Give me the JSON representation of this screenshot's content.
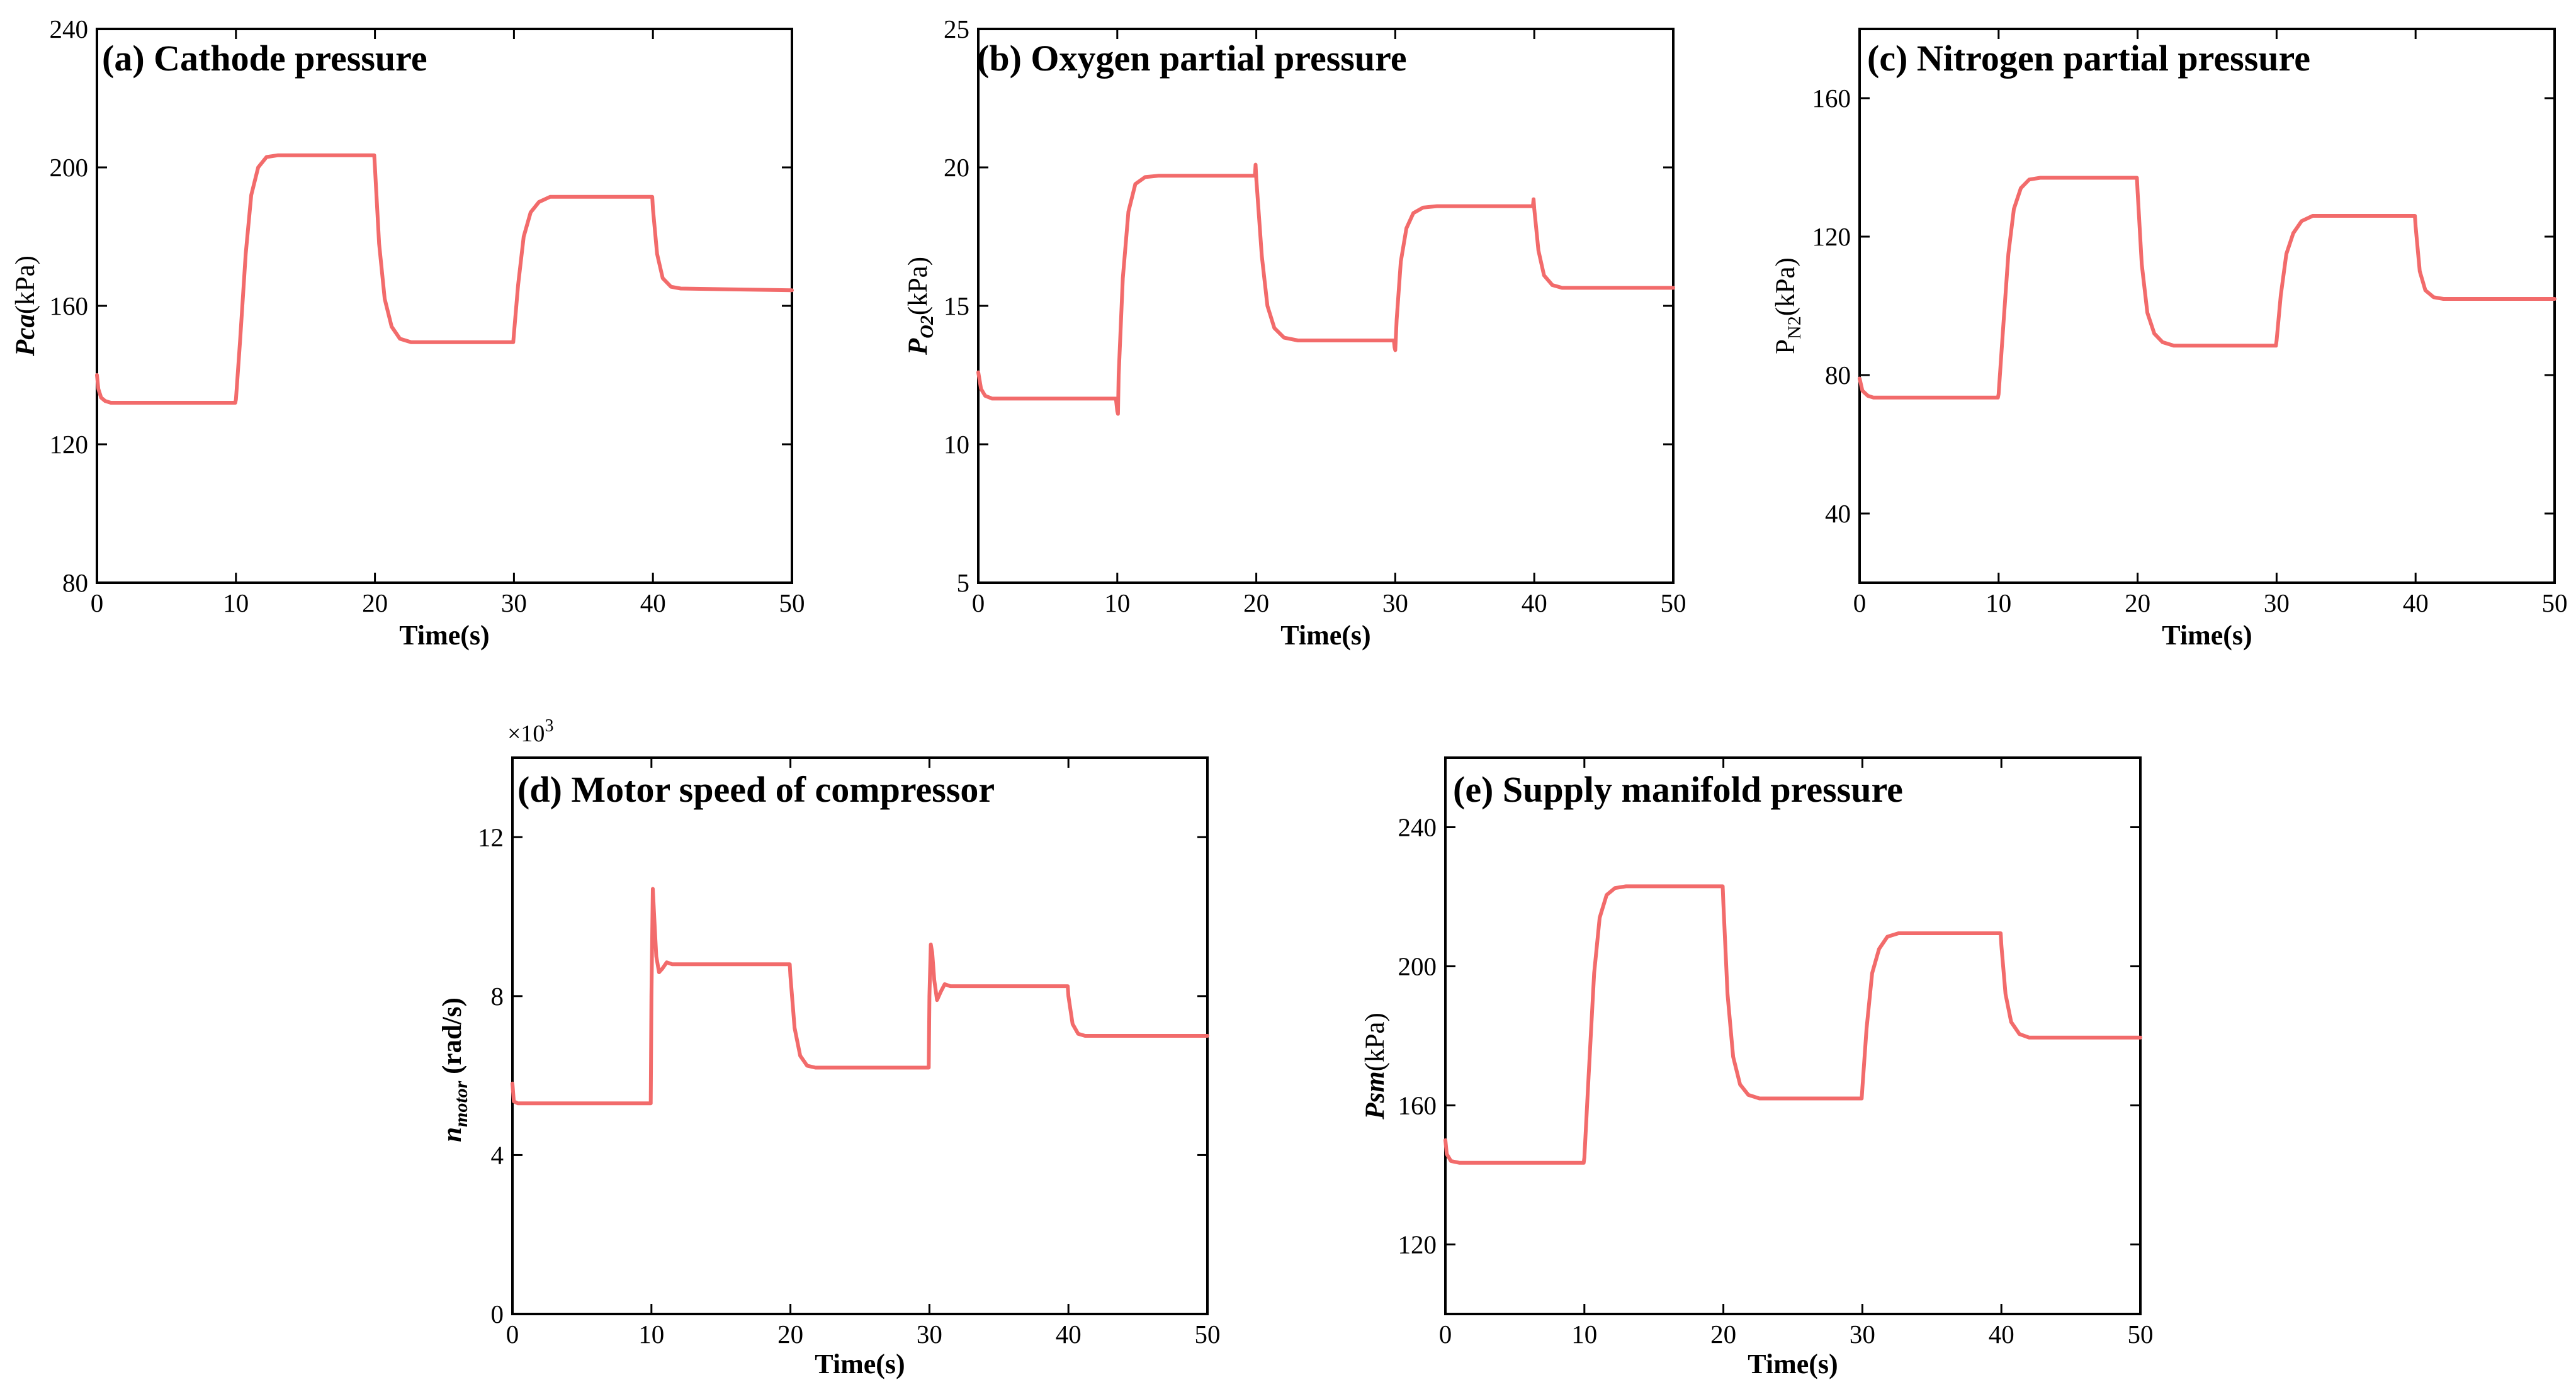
{
  "chart_data": [
    {
      "type": "line",
      "title": "(a) Cathode pressure",
      "xlabel": "Time(s)",
      "ylabel": {
        "main": "Pca",
        "unit": "(kPa)"
      },
      "x_ticks": [
        "0",
        "10",
        "20",
        "30",
        "40",
        "50"
      ],
      "y_ticks": [
        "80",
        "120",
        "160",
        "200",
        "240"
      ],
      "xlim": [
        0,
        50
      ],
      "ylim": [
        80,
        240
      ],
      "line_color": "#F26B6B",
      "series": [
        {
          "name": "Pca",
          "points": [
            [
              0,
              140
            ],
            [
              0.1,
              136
            ],
            [
              0.3,
              133.5
            ],
            [
              0.6,
              132.5
            ],
            [
              1,
              132
            ],
            [
              9.95,
              132
            ],
            [
              10,
              133
            ],
            [
              10.3,
              150
            ],
            [
              10.7,
              175
            ],
            [
              11.1,
              192
            ],
            [
              11.6,
              200
            ],
            [
              12.2,
              203
            ],
            [
              13,
              203.5
            ],
            [
              19.95,
              203.5
            ],
            [
              20,
              200
            ],
            [
              20.3,
              178
            ],
            [
              20.7,
              162
            ],
            [
              21.2,
              154
            ],
            [
              21.8,
              150.5
            ],
            [
              22.6,
              149.5
            ],
            [
              29.95,
              149.5
            ],
            [
              30,
              152
            ],
            [
              30.3,
              166
            ],
            [
              30.7,
              180
            ],
            [
              31.2,
              187
            ],
            [
              31.8,
              190
            ],
            [
              32.6,
              191.5
            ],
            [
              39.95,
              191.5
            ],
            [
              40,
              188
            ],
            [
              40.3,
              175
            ],
            [
              40.7,
              168
            ],
            [
              41.3,
              165.5
            ],
            [
              42,
              165
            ],
            [
              50,
              164.5
            ]
          ]
        }
      ]
    },
    {
      "type": "line",
      "title": "(b) Oxygen partial pressure",
      "xlabel": "Time(s)",
      "ylabel": {
        "main": "P",
        "sub": "O2",
        "unit": "(kPa)"
      },
      "x_ticks": [
        "0",
        "10",
        "20",
        "30",
        "40",
        "50"
      ],
      "y_ticks": [
        "5",
        "10",
        "15",
        "20",
        "25"
      ],
      "xlim": [
        0,
        50
      ],
      "ylim": [
        5,
        25
      ],
      "line_color": "#F26B6B",
      "series": [
        {
          "name": "PO2",
          "points": [
            [
              0,
              12.6
            ],
            [
              0.2,
              12
            ],
            [
              0.5,
              11.75
            ],
            [
              1,
              11.65
            ],
            [
              9.9,
              11.65
            ],
            [
              10,
              11.2
            ],
            [
              10.05,
              11.1
            ],
            [
              10.1,
              12.5
            ],
            [
              10.4,
              16
            ],
            [
              10.8,
              18.4
            ],
            [
              11.3,
              19.4
            ],
            [
              12,
              19.65
            ],
            [
              13,
              19.7
            ],
            [
              19.9,
              19.7
            ],
            [
              19.95,
              20.1
            ],
            [
              20,
              19.6
            ],
            [
              20.4,
              16.8
            ],
            [
              20.8,
              15
            ],
            [
              21.3,
              14.2
            ],
            [
              22,
              13.85
            ],
            [
              23,
              13.75
            ],
            [
              29.9,
              13.75
            ],
            [
              29.95,
              13.5
            ],
            [
              30,
              13.4
            ],
            [
              30.1,
              14.5
            ],
            [
              30.4,
              16.6
            ],
            [
              30.8,
              17.8
            ],
            [
              31.3,
              18.35
            ],
            [
              32,
              18.55
            ],
            [
              33,
              18.6
            ],
            [
              39.9,
              18.6
            ],
            [
              39.95,
              18.85
            ],
            [
              40,
              18.5
            ],
            [
              40.3,
              17
            ],
            [
              40.7,
              16.1
            ],
            [
              41.3,
              15.75
            ],
            [
              42,
              15.65
            ],
            [
              50,
              15.65
            ]
          ]
        }
      ]
    },
    {
      "type": "line",
      "title": "(c) Nitrogen partial pressure",
      "xlabel": "Time(s)",
      "ylabel": {
        "main": "P",
        "sub": "N2",
        "unit": "(kPa)"
      },
      "x_ticks": [
        "0",
        "10",
        "20",
        "30",
        "40",
        "50"
      ],
      "y_ticks": [
        "40",
        "80",
        "120",
        "160"
      ],
      "xlim": [
        0,
        50
      ],
      "ylim": [
        20,
        180
      ],
      "line_color": "#F26B6B",
      "series": [
        {
          "name": "PN2",
          "points": [
            [
              0,
              79
            ],
            [
              0.2,
              75.5
            ],
            [
              0.6,
              74
            ],
            [
              1,
              73.5
            ],
            [
              9.95,
              73.5
            ],
            [
              10,
              74.5
            ],
            [
              10.3,
              92
            ],
            [
              10.7,
              115
            ],
            [
              11.1,
              128
            ],
            [
              11.6,
              134
            ],
            [
              12.2,
              136.5
            ],
            [
              13,
              137
            ],
            [
              19.95,
              137
            ],
            [
              20,
              133
            ],
            [
              20.3,
              112
            ],
            [
              20.7,
              98
            ],
            [
              21.2,
              92
            ],
            [
              21.8,
              89.5
            ],
            [
              22.6,
              88.5
            ],
            [
              29.95,
              88.5
            ],
            [
              30,
              90
            ],
            [
              30.3,
              103
            ],
            [
              30.7,
              115
            ],
            [
              31.2,
              121
            ],
            [
              31.8,
              124.5
            ],
            [
              32.6,
              126
            ],
            [
              39.95,
              126
            ],
            [
              40,
              123
            ],
            [
              40.3,
              110
            ],
            [
              40.7,
              104.5
            ],
            [
              41.3,
              102.5
            ],
            [
              42,
              102
            ],
            [
              50,
              102
            ]
          ]
        }
      ]
    },
    {
      "type": "line",
      "title": "(d) Motor speed of compressor",
      "xlabel": "Time(s)",
      "ylabel": {
        "main": "n",
        "sub": "motor",
        "unit": " (rad/s)"
      },
      "y_multiplier": {
        "base": "×10",
        "exponent": "3"
      },
      "x_ticks": [
        "0",
        "10",
        "20",
        "30",
        "40",
        "50"
      ],
      "y_ticks": [
        "0",
        "4",
        "8",
        "12"
      ],
      "xlim": [
        0,
        50
      ],
      "ylim": [
        0,
        14
      ],
      "line_color": "#F26B6B",
      "series": [
        {
          "name": "n_motor",
          "points": [
            [
              0,
              5.8
            ],
            [
              0.1,
              5.35
            ],
            [
              0.4,
              5.3
            ],
            [
              9.95,
              5.3
            ],
            [
              10,
              8
            ],
            [
              10.1,
              10.7
            ],
            [
              10.2,
              10
            ],
            [
              10.35,
              9
            ],
            [
              10.55,
              8.6
            ],
            [
              10.8,
              8.7
            ],
            [
              11.1,
              8.85
            ],
            [
              11.5,
              8.8
            ],
            [
              19.95,
              8.8
            ],
            [
              20,
              8.5
            ],
            [
              20.3,
              7.2
            ],
            [
              20.7,
              6.5
            ],
            [
              21.2,
              6.25
            ],
            [
              21.8,
              6.2
            ],
            [
              29.95,
              6.2
            ],
            [
              30,
              8
            ],
            [
              30.1,
              9.3
            ],
            [
              30.2,
              9.1
            ],
            [
              30.35,
              8.4
            ],
            [
              30.55,
              7.9
            ],
            [
              30.8,
              8.1
            ],
            [
              31.1,
              8.3
            ],
            [
              31.5,
              8.25
            ],
            [
              39.95,
              8.25
            ],
            [
              40,
              8
            ],
            [
              40.3,
              7.3
            ],
            [
              40.7,
              7.05
            ],
            [
              41.2,
              7
            ],
            [
              50,
              7
            ]
          ]
        }
      ]
    },
    {
      "type": "line",
      "title": "(e) Supply manifold pressure",
      "xlabel": "Time(s)",
      "ylabel": {
        "main": "Psm",
        "unit": "(kPa)"
      },
      "x_ticks": [
        "0",
        "10",
        "20",
        "30",
        "40",
        "50"
      ],
      "y_ticks": [
        "120",
        "160",
        "200",
        "240"
      ],
      "xlim": [
        0,
        50
      ],
      "ylim": [
        100,
        260
      ],
      "line_color": "#F26B6B",
      "series": [
        {
          "name": "Psm",
          "points": [
            [
              0,
              150
            ],
            [
              0.1,
              146
            ],
            [
              0.4,
              144
            ],
            [
              1,
              143.5
            ],
            [
              9.95,
              143.5
            ],
            [
              10,
              145
            ],
            [
              10.3,
              168
            ],
            [
              10.7,
              198
            ],
            [
              11.1,
              214
            ],
            [
              11.6,
              220.5
            ],
            [
              12.2,
              222.5
            ],
            [
              13,
              223
            ],
            [
              19.95,
              223
            ],
            [
              20,
              218
            ],
            [
              20.3,
              192
            ],
            [
              20.7,
              174
            ],
            [
              21.2,
              166
            ],
            [
              21.8,
              163
            ],
            [
              22.6,
              162
            ],
            [
              29.95,
              162
            ],
            [
              30,
              165
            ],
            [
              30.3,
              182
            ],
            [
              30.7,
              198
            ],
            [
              31.2,
              205
            ],
            [
              31.8,
              208.5
            ],
            [
              32.6,
              209.5
            ],
            [
              39.95,
              209.5
            ],
            [
              40,
              206
            ],
            [
              40.3,
              192
            ],
            [
              40.7,
              184
            ],
            [
              41.3,
              180.5
            ],
            [
              42,
              179.5
            ],
            [
              50,
              179.5
            ]
          ]
        }
      ]
    }
  ]
}
